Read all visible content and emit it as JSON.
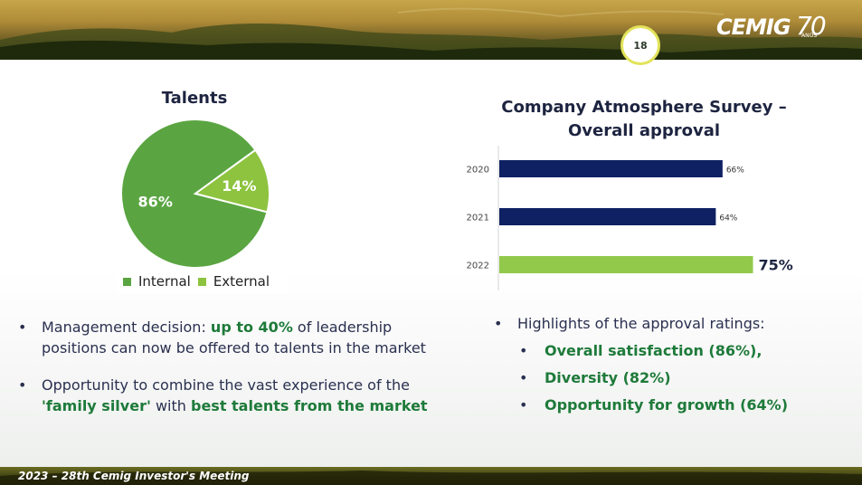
{
  "header": {
    "page_number": "18",
    "logo_word": "CEMIG",
    "logo_number": "70",
    "logo_sub": "ANOS"
  },
  "footer": {
    "text": "2023 – 28th Cemig Investor's Meeting"
  },
  "colors": {
    "navy": "#0f2163",
    "light_green": "#92c94b",
    "pie_green": "#5aa541",
    "pie_light": "#8dc33f",
    "highlight_green": "#1e7a3a"
  },
  "chart_data": [
    {
      "type": "pie",
      "title": "Talents",
      "slices": [
        {
          "name": "Internal",
          "value": 86,
          "label": "86%",
          "color": "#5aa541"
        },
        {
          "name": "External",
          "value": 14,
          "label": "14%",
          "color": "#8dc33f"
        }
      ],
      "legend": "bottom"
    },
    {
      "type": "bar",
      "orientation": "horizontal",
      "title": "Company Atmosphere Survey – Overall approval",
      "title_lines": [
        "Company Atmosphere Survey –",
        "Overall approval"
      ],
      "categories": [
        "2020",
        "2021",
        "2022"
      ],
      "values": [
        66,
        64,
        75
      ],
      "labels": [
        "66%",
        "64%",
        "75%"
      ],
      "colors": [
        "#0f2163",
        "#0f2163",
        "#92c94b"
      ],
      "xlim": [
        0,
        100
      ]
    }
  ],
  "left_bullets": [
    {
      "pre": "Management decision: ",
      "bold": "up to 40%",
      "post": " of leadership positions can now be offered to talents in the market"
    },
    {
      "pre": "Opportunity to combine the vast experience of the ",
      "bold": "'family silver'",
      "mid": " with ",
      "bold2": "best talents from the market"
    }
  ],
  "right_bullets": {
    "heading": "Highlights of the approval ratings:",
    "items": [
      "Overall satisfaction (86%),",
      "Diversity (82%)",
      "Opportunity for growth (64%)"
    ]
  }
}
